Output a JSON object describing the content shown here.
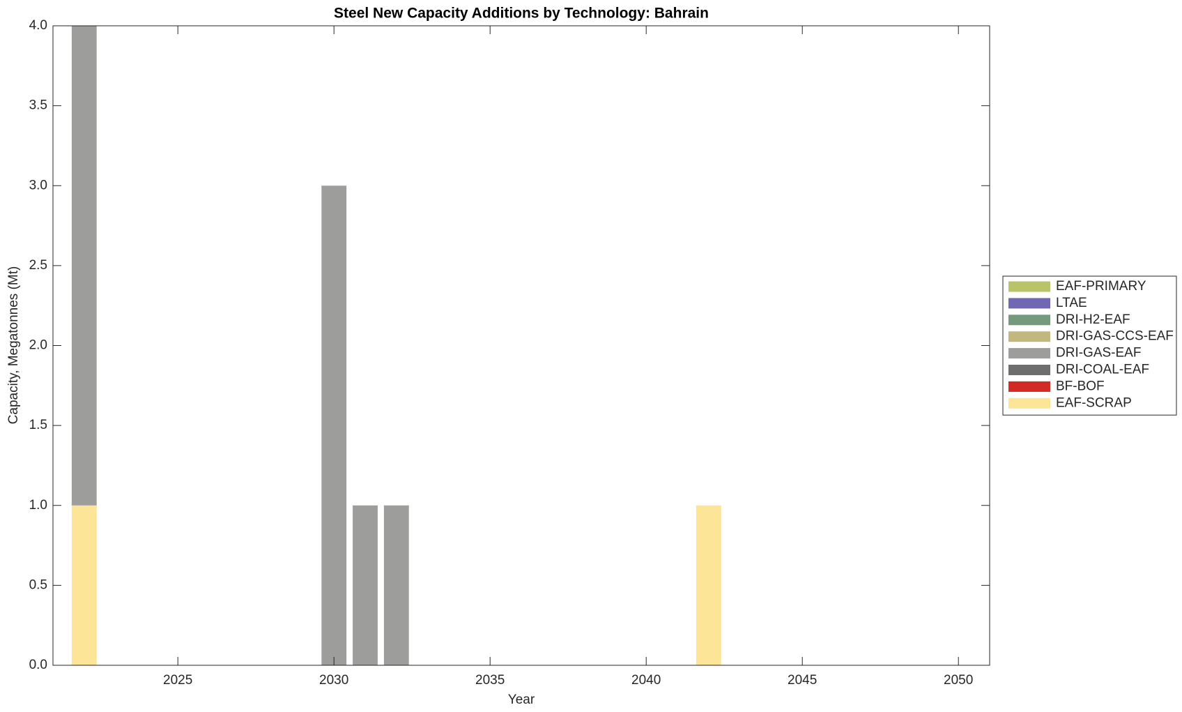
{
  "chart_data": {
    "type": "stacked-bar",
    "title": "Steel New Capacity Additions by Technology: Bahrain",
    "xlabel": "Year",
    "ylabel": "Capacity, Megatonnes (Mt)",
    "x": [
      2022,
      2023,
      2024,
      2025,
      2026,
      2027,
      2028,
      2029,
      2030,
      2031,
      2032,
      2033,
      2034,
      2035,
      2036,
      2037,
      2038,
      2039,
      2040,
      2041,
      2042,
      2043,
      2044,
      2045,
      2046,
      2047,
      2048,
      2049,
      2050
    ],
    "series": [
      {
        "name": "EAF-SCRAP",
        "color": "#fde597",
        "values": [
          1,
          0,
          0,
          0,
          0,
          0,
          0,
          0,
          0,
          0,
          0,
          0,
          0,
          0,
          0,
          0,
          0,
          0,
          0,
          0,
          1,
          0,
          0,
          0,
          0,
          0,
          0,
          0,
          0
        ]
      },
      {
        "name": "BF-BOF",
        "color": "#d42a26",
        "values": [
          0,
          0,
          0,
          0,
          0,
          0,
          0,
          0,
          0,
          0,
          0,
          0,
          0,
          0,
          0,
          0,
          0,
          0,
          0,
          0,
          0,
          0,
          0,
          0,
          0,
          0,
          0,
          0,
          0
        ]
      },
      {
        "name": "DRI-COAL-EAF",
        "color": "#6d6d6d",
        "values": [
          0,
          0,
          0,
          0,
          0,
          0,
          0,
          0,
          0,
          0,
          0,
          0,
          0,
          0,
          0,
          0,
          0,
          0,
          0,
          0,
          0,
          0,
          0,
          0,
          0,
          0,
          0,
          0,
          0
        ]
      },
      {
        "name": "DRI-GAS-EAF",
        "color": "#9d9d9b",
        "values": [
          3,
          0,
          0,
          0,
          0,
          0,
          0,
          0,
          3,
          1,
          1,
          0,
          0,
          0,
          0,
          0,
          0,
          0,
          0,
          0,
          0,
          0,
          0,
          0,
          0,
          0,
          0,
          0,
          0
        ]
      },
      {
        "name": "DRI-GAS-CCS-EAF",
        "color": "#c2b87d",
        "values": [
          0,
          0,
          0,
          0,
          0,
          0,
          0,
          0,
          0,
          0,
          0,
          0,
          0,
          0,
          0,
          0,
          0,
          0,
          0,
          0,
          0,
          0,
          0,
          0,
          0,
          0,
          0,
          0,
          0
        ]
      },
      {
        "name": "DRI-H2-EAF",
        "color": "#739a7d",
        "values": [
          0,
          0,
          0,
          0,
          0,
          0,
          0,
          0,
          0,
          0,
          0,
          0,
          0,
          0,
          0,
          0,
          0,
          0,
          0,
          0,
          0,
          0,
          0,
          0,
          0,
          0,
          0,
          0,
          0
        ]
      },
      {
        "name": "LTAE",
        "color": "#7068b4",
        "values": [
          0,
          0,
          0,
          0,
          0,
          0,
          0,
          0,
          0,
          0,
          0,
          0,
          0,
          0,
          0,
          0,
          0,
          0,
          0,
          0,
          0,
          0,
          0,
          0,
          0,
          0,
          0,
          0,
          0
        ]
      },
      {
        "name": "EAF-PRIMARY",
        "color": "#b9c46a",
        "values": [
          0,
          0,
          0,
          0,
          0,
          0,
          0,
          0,
          0,
          0,
          0,
          0,
          0,
          0,
          0,
          0,
          0,
          0,
          0,
          0,
          0,
          0,
          0,
          0,
          0,
          0,
          0,
          0,
          0
        ]
      }
    ],
    "xlim": [
      2021,
      2051
    ],
    "xticks": [
      2025,
      2030,
      2035,
      2040,
      2045,
      2050
    ],
    "ylim": [
      0,
      4
    ],
    "yticks": [
      {
        "value": 0,
        "label": "0.0"
      },
      {
        "value": 0.5,
        "label": "0.5"
      },
      {
        "value": 1,
        "label": "1.0"
      },
      {
        "value": 1.5,
        "label": "1.5"
      },
      {
        "value": 2,
        "label": "2.0"
      },
      {
        "value": 2.5,
        "label": "2.5"
      },
      {
        "value": 3,
        "label": "3.0"
      },
      {
        "value": 3.5,
        "label": "3.5"
      },
      {
        "value": 4,
        "label": "4.0"
      }
    ],
    "legend": "outside-right"
  }
}
